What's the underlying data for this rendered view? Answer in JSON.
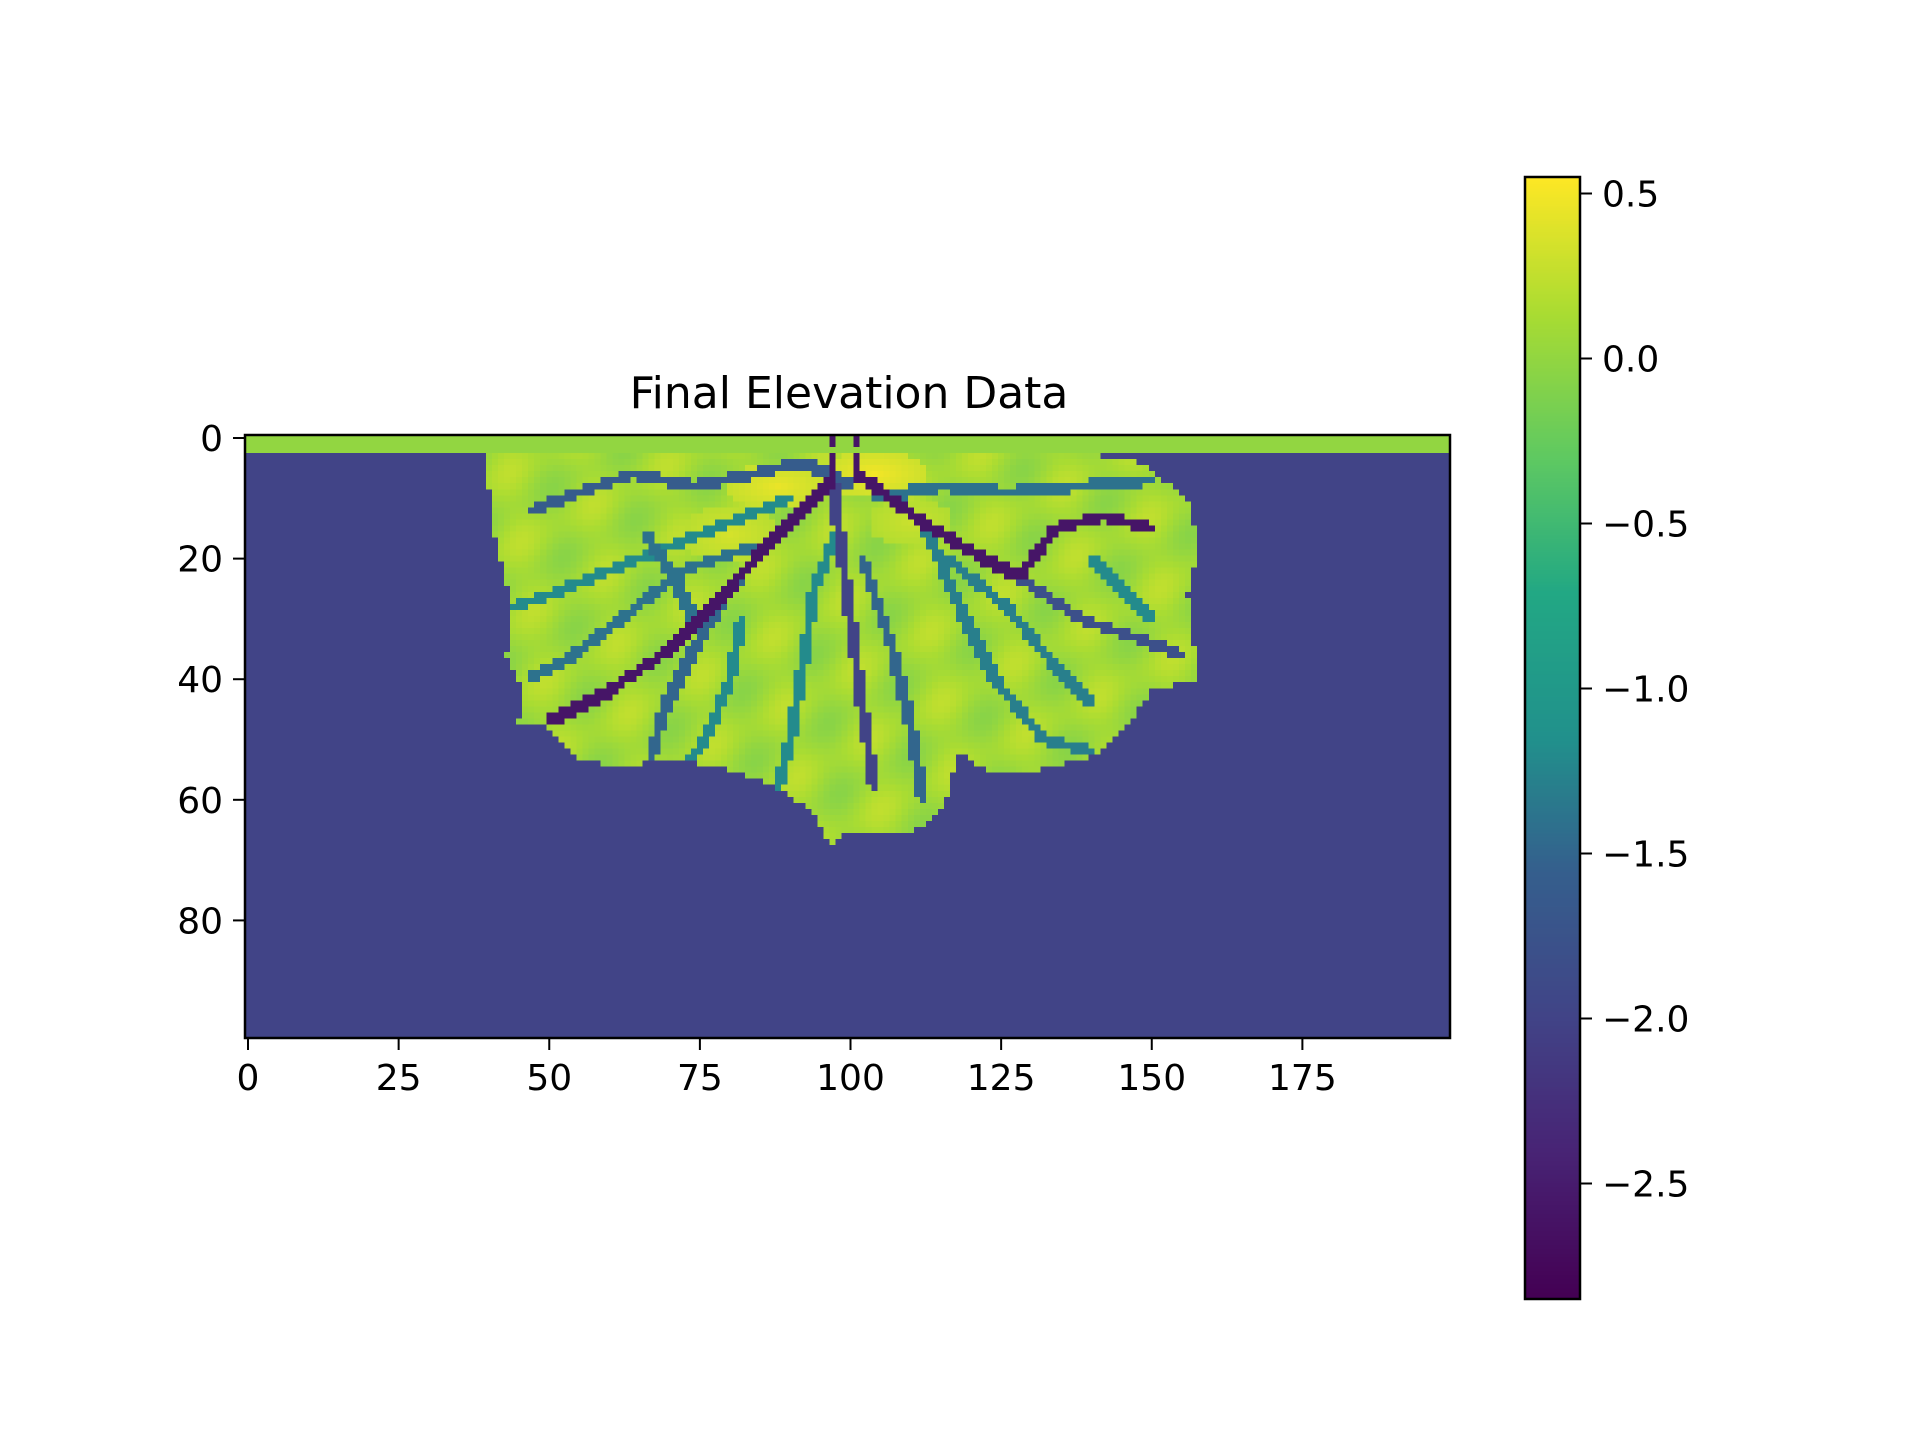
{
  "chart_data": {
    "type": "heatmap",
    "title": "Final Elevation Data",
    "xlabel": "",
    "ylabel": "",
    "grid": false,
    "colormap": "viridis",
    "x_range": [
      -0.5,
      199.5
    ],
    "y_range": [
      99.5,
      -0.5
    ],
    "x_ticks": [
      0,
      25,
      50,
      75,
      100,
      125,
      150,
      175
    ],
    "y_ticks": [
      0,
      20,
      40,
      60,
      80
    ],
    "colorbar": {
      "range": [
        -2.85,
        0.55
      ],
      "ticks": [
        0.5,
        0.0,
        -0.5,
        -1.0,
        -1.5,
        -2.0,
        -2.5
      ],
      "tick_labels": [
        "0.5",
        "0.0",
        "−0.5",
        "−1.0",
        "−1.5",
        "−2.0",
        "−2.5"
      ]
    },
    "basin_value": -2.0,
    "top_strip": {
      "rows": [
        0,
        2
      ],
      "value": 0.0
    },
    "delta_outline": [
      [
        40,
        3
      ],
      [
        48,
        3
      ],
      [
        58,
        2
      ],
      [
        70,
        3
      ],
      [
        82,
        2
      ],
      [
        94,
        3
      ],
      [
        110,
        2
      ],
      [
        124,
        3
      ],
      [
        136,
        2
      ],
      [
        148,
        4
      ],
      [
        156,
        10
      ],
      [
        158,
        18
      ],
      [
        156,
        26
      ],
      [
        157,
        34
      ],
      [
        158,
        40
      ],
      [
        150,
        42
      ],
      [
        146,
        48
      ],
      [
        140,
        53
      ],
      [
        132,
        55
      ],
      [
        124,
        56
      ],
      [
        118,
        52
      ],
      [
        116,
        60
      ],
      [
        113,
        64
      ],
      [
        108,
        66
      ],
      [
        100,
        65
      ],
      [
        97,
        68
      ],
      [
        94,
        62
      ],
      [
        88,
        58
      ],
      [
        80,
        55
      ],
      [
        70,
        53
      ],
      [
        62,
        55
      ],
      [
        55,
        53
      ],
      [
        50,
        48
      ],
      [
        45,
        47
      ],
      [
        46,
        42
      ],
      [
        43,
        36
      ],
      [
        44,
        30
      ],
      [
        43,
        24
      ],
      [
        41,
        16
      ],
      [
        40,
        8
      ]
    ],
    "delta_base_value": 0.1,
    "high_zones": [
      {
        "center": [
          104,
          6
        ],
        "radius": [
          9,
          4
        ],
        "value": 0.5
      },
      {
        "center": [
          88,
          8
        ],
        "radius": [
          9,
          4
        ],
        "value": 0.45
      },
      {
        "center": [
          80,
          16
        ],
        "radius": [
          8,
          5
        ],
        "value": 0.35
      },
      {
        "center": [
          110,
          14
        ],
        "radius": [
          7,
          4
        ],
        "value": 0.3
      }
    ],
    "channels": [
      {
        "points": [
          [
            97,
            0
          ],
          [
            97,
            7
          ],
          [
            94,
            10
          ],
          [
            87,
            17
          ],
          [
            78,
            27
          ],
          [
            70,
            35
          ],
          [
            60,
            42
          ],
          [
            50,
            47
          ]
        ],
        "value": -2.6
      },
      {
        "points": [
          [
            101,
            0
          ],
          [
            101,
            6
          ],
          [
            104,
            8
          ],
          [
            112,
            14
          ],
          [
            122,
            20
          ],
          [
            128,
            23
          ],
          [
            134,
            15
          ],
          [
            142,
            13
          ],
          [
            150,
            15
          ]
        ],
        "value": -2.6
      },
      {
        "points": [
          [
            128,
            23
          ],
          [
            138,
            30
          ],
          [
            147,
            33
          ],
          [
            155,
            36
          ]
        ],
        "value": -1.8
      },
      {
        "points": [
          [
            97,
            7
          ],
          [
            98,
            15
          ],
          [
            100,
            30
          ],
          [
            102,
            45
          ],
          [
            104,
            58
          ]
        ],
        "value": -2.0
      },
      {
        "points": [
          [
            94,
            10
          ],
          [
            86,
            18
          ],
          [
            80,
            25
          ],
          [
            74,
            35
          ],
          [
            69,
            45
          ],
          [
            67,
            53
          ]
        ],
        "value": -1.5
      },
      {
        "points": [
          [
            98,
            15
          ],
          [
            94,
            25
          ],
          [
            92,
            38
          ],
          [
            90,
            50
          ],
          [
            88,
            58
          ]
        ],
        "value": -1.2
      },
      {
        "points": [
          [
            102,
            20
          ],
          [
            107,
            35
          ],
          [
            110,
            48
          ],
          [
            112,
            60
          ]
        ],
        "value": -1.5
      },
      {
        "points": [
          [
            112,
            14
          ],
          [
            118,
            28
          ],
          [
            124,
            40
          ],
          [
            132,
            50
          ],
          [
            140,
            52
          ]
        ],
        "value": -1.3
      },
      {
        "points": [
          [
            100,
            8
          ],
          [
            92,
            4
          ],
          [
            84,
            6
          ],
          [
            74,
            8
          ],
          [
            64,
            6
          ],
          [
            55,
            9
          ],
          [
            47,
            12
          ]
        ],
        "value": -1.6
      },
      {
        "points": [
          [
            90,
            10
          ],
          [
            80,
            14
          ],
          [
            70,
            18
          ],
          [
            60,
            22
          ],
          [
            50,
            26
          ],
          [
            44,
            28
          ]
        ],
        "value": -1.2
      },
      {
        "points": [
          [
            84,
            18
          ],
          [
            72,
            22
          ],
          [
            62,
            30
          ],
          [
            54,
            36
          ],
          [
            47,
            40
          ]
        ],
        "value": -1.4
      },
      {
        "points": [
          [
            104,
            10
          ],
          [
            115,
            8
          ],
          [
            126,
            9
          ],
          [
            138,
            8
          ],
          [
            150,
            7
          ]
        ],
        "value": -1.4
      },
      {
        "points": [
          [
            116,
            20
          ],
          [
            126,
            28
          ],
          [
            134,
            38
          ],
          [
            140,
            44
          ]
        ],
        "value": -1.3
      },
      {
        "points": [
          [
            82,
            30
          ],
          [
            80,
            40
          ],
          [
            76,
            50
          ],
          [
            72,
            55
          ]
        ],
        "value": -1.2
      },
      {
        "points": [
          [
            66,
            16
          ],
          [
            70,
            22
          ],
          [
            74,
            30
          ]
        ],
        "value": -1.4
      },
      {
        "points": [
          [
            140,
            20
          ],
          [
            146,
            26
          ],
          [
            150,
            30
          ]
        ],
        "value": -1.2
      }
    ]
  }
}
